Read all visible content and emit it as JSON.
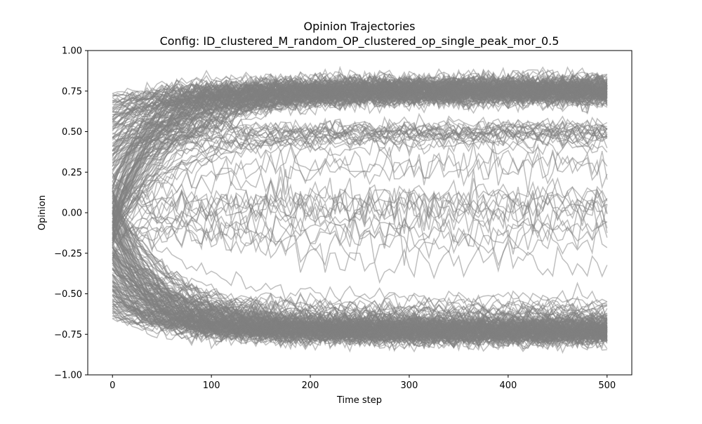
{
  "chart_data": {
    "type": "line",
    "title": "Opinion Trajectories",
    "subtitle": "Config: ID_clustered_M_random_OP_clustered_op_single_peak_mor_0.5",
    "xlabel": "Time step",
    "ylabel": "Opinion",
    "xlim": [
      -25,
      525
    ],
    "ylim": [
      -1.0,
      1.0
    ],
    "x_ticks": [
      0,
      100,
      200,
      300,
      400,
      500
    ],
    "x_tick_labels": [
      "0",
      "100",
      "200",
      "300",
      "400",
      "500"
    ],
    "y_ticks": [
      -1.0,
      -0.75,
      -0.5,
      -0.25,
      0.0,
      0.25,
      0.5,
      0.75,
      1.0
    ],
    "y_tick_labels": [
      "−1.00",
      "−0.75",
      "−0.50",
      "−0.25",
      "0.00",
      "0.25",
      "0.50",
      "0.75",
      "1.00"
    ],
    "grid": false,
    "legend": "none",
    "line_color": "#808080",
    "line_alpha": 0.5,
    "x_range": [
      0,
      500
    ],
    "series_groups": [
      {
        "initial_range": [
          -0.2,
          0.75
        ],
        "final_mean": 0.76,
        "final_spread": 0.06,
        "share": 0.42
      },
      {
        "initial_range": [
          -0.65,
          0.15
        ],
        "final_mean": -0.73,
        "final_spread": 0.06,
        "share": 0.42
      },
      {
        "initial_range": [
          -0.3,
          0.6
        ],
        "final_mean": 0.5,
        "final_spread": 0.05,
        "share": 0.06
      },
      {
        "initial_range": [
          -0.6,
          0.1
        ],
        "final_mean": -0.6,
        "final_spread": 0.05,
        "share": 0.05
      },
      {
        "initial_range": [
          -0.3,
          0.3
        ],
        "final_mean": 0.0,
        "final_spread": 0.35,
        "share": 0.05
      }
    ]
  }
}
